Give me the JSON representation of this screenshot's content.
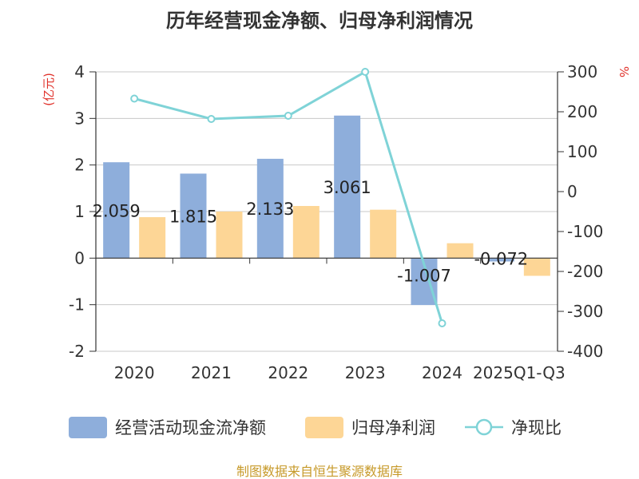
{
  "chart_data": {
    "type": "bar",
    "title": "历年经营现金净额、归母净利润情况",
    "categories": [
      "2020",
      "2021",
      "2022",
      "2023",
      "2024",
      "2025Q1-Q3"
    ],
    "y_left": {
      "unit": "(亿元)",
      "range": [
        -2,
        4
      ],
      "ticks": [
        "-2",
        "-1",
        "0",
        "1",
        "2",
        "3",
        "4"
      ]
    },
    "y_right": {
      "unit": "%",
      "range": [
        -400,
        300
      ],
      "ticks": [
        "-400",
        "-300",
        "-200",
        "-100",
        "0",
        "100",
        "200",
        "300"
      ]
    },
    "series": [
      {
        "name": "经营活动现金流净额",
        "kind": "bar",
        "axis": "left",
        "color": "#8eaedb",
        "values": [
          2.059,
          1.815,
          2.133,
          3.061,
          -1.007,
          -0.072
        ],
        "labels": [
          "2.059",
          "1.815",
          "2.133",
          "3.061",
          "-1.007",
          "-0.072"
        ]
      },
      {
        "name": "归母净利润",
        "kind": "bar",
        "axis": "left",
        "color": "#fdd696",
        "values": [
          0.88,
          1.0,
          1.12,
          1.04,
          0.32,
          -0.38
        ]
      },
      {
        "name": "净现比",
        "kind": "line",
        "axis": "right",
        "color": "#7fd3d7",
        "values": [
          233,
          182,
          190,
          300,
          -330,
          null
        ]
      }
    ],
    "grid": true,
    "legend_position": "bottom"
  },
  "source": "制图数据来自恒生聚源数据库"
}
